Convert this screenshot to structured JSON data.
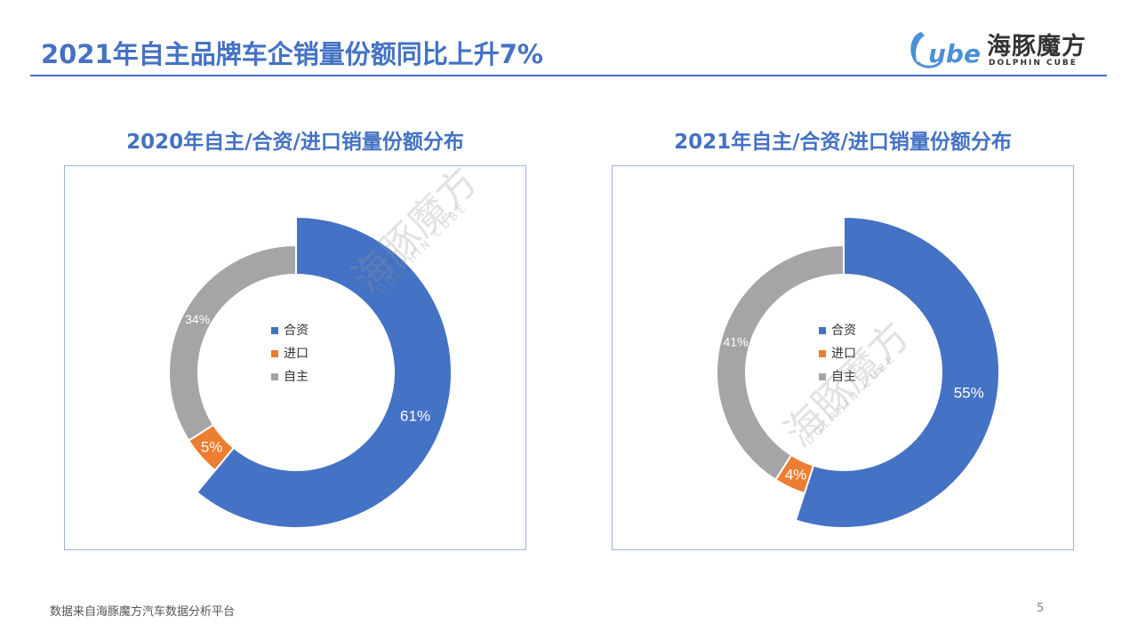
{
  "page": {
    "title": "2021年自主品牌车企销量份额同比上升7%",
    "footer_source": "数据来自海豚魔方汽车数据分析平台",
    "page_number": "5"
  },
  "logo": {
    "cn": "海豚魔方",
    "en": "DOLPHIN CUBE",
    "mark": "ube",
    "brand_color": "#4A90D9"
  },
  "watermark": {
    "cn": "海豚魔方",
    "en": "DOLPHIN CUBE"
  },
  "colors": {
    "合资": "#4472C4",
    "进口": "#ED7D31",
    "自主": "#A5A5A5",
    "title": "#4472C4"
  },
  "chart_data": [
    {
      "type": "pie",
      "subtype": "doughnut",
      "title": "2020年自主/合资/进口销量份额分布",
      "categories": [
        "合资",
        "进口",
        "自主"
      ],
      "values": [
        61,
        5,
        34
      ],
      "labels": [
        "61%",
        "5%",
        "34%"
      ],
      "legend": [
        "合资",
        "进口",
        "自主"
      ],
      "legend_position": "center"
    },
    {
      "type": "pie",
      "subtype": "doughnut",
      "title": "2021年自主/合资/进口销量份额分布",
      "categories": [
        "合资",
        "进口",
        "自主"
      ],
      "values": [
        55,
        4,
        41
      ],
      "labels": [
        "55%",
        "4%",
        "41%"
      ],
      "legend": [
        "合资",
        "进口",
        "自主"
      ],
      "legend_position": "center"
    }
  ]
}
